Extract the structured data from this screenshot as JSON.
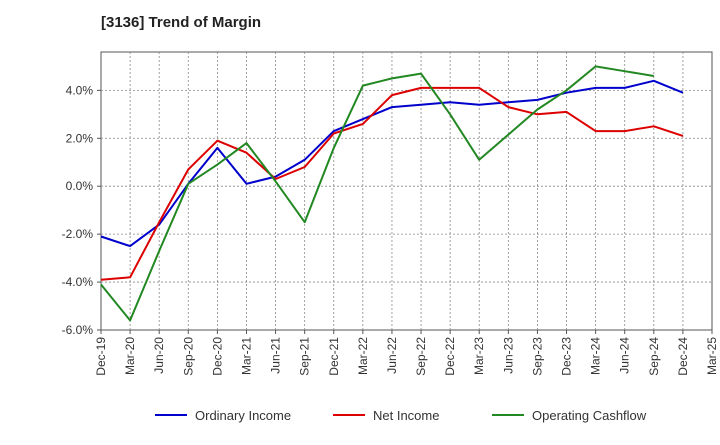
{
  "chart_data": {
    "type": "line",
    "title": "[3136]  Trend of Margin",
    "xlabel": "",
    "ylabel": "",
    "x": [
      "Dec-19",
      "Mar-20",
      "Jun-20",
      "Sep-20",
      "Dec-20",
      "Mar-21",
      "Jun-21",
      "Sep-21",
      "Dec-21",
      "Mar-22",
      "Jun-22",
      "Sep-22",
      "Dec-22",
      "Mar-23",
      "Jun-23",
      "Sep-23",
      "Dec-23",
      "Mar-24",
      "Jun-24",
      "Sep-24",
      "Dec-24",
      "Mar-25"
    ],
    "ylim": [
      -6.0,
      5.6
    ],
    "yticks": [
      -6.0,
      -4.0,
      -2.0,
      0.0,
      2.0,
      4.0
    ],
    "ytick_labels": [
      "-6.0%",
      "-4.0%",
      "-2.0%",
      "0.0%",
      "2.0%",
      "4.0%"
    ],
    "grid": true,
    "legend": "bottom",
    "series": [
      {
        "name": "Ordinary Income",
        "color": "#0000cc",
        "values": [
          -2.1,
          -2.5,
          -1.6,
          0.1,
          1.6,
          0.1,
          0.4,
          1.1,
          2.3,
          2.8,
          3.3,
          3.4,
          3.5,
          3.4,
          3.5,
          3.6,
          3.9,
          4.1,
          4.1,
          4.4,
          3.9,
          null
        ]
      },
      {
        "name": "Net Income",
        "color": "#dd0000",
        "values": [
          -3.9,
          -3.8,
          -1.5,
          0.7,
          1.9,
          1.4,
          0.3,
          0.8,
          2.2,
          2.6,
          3.8,
          4.1,
          4.1,
          4.1,
          3.3,
          3.0,
          3.1,
          2.3,
          2.3,
          2.5,
          2.1,
          null
        ]
      },
      {
        "name": "Operating Cashflow",
        "color": "#228822",
        "values": [
          -4.1,
          -5.6,
          -2.7,
          0.1,
          0.9,
          1.8,
          0.2,
          -1.5,
          1.6,
          4.2,
          4.5,
          4.7,
          3.0,
          1.1,
          null,
          3.2,
          4.0,
          5.0,
          4.8,
          4.6,
          null,
          null
        ]
      }
    ]
  }
}
